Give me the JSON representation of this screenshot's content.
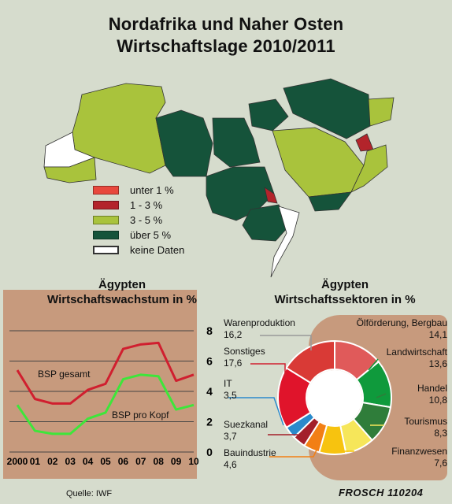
{
  "title": {
    "line1": "Nordafrika und Naher Osten",
    "line2": "Wirtschaftslage 2010/2011"
  },
  "legend": [
    {
      "label": "unter 1 %",
      "color": "#e8483d"
    },
    {
      "label": "1 - 3 %",
      "color": "#b3242b"
    },
    {
      "label": "3 - 5 %",
      "color": "#a9c33c"
    },
    {
      "label": "über 5 %",
      "color": "#15533a"
    },
    {
      "label": "keine Daten",
      "color": "#ffffff"
    }
  ],
  "colors": {
    "background": "#d6dccd",
    "bsp_gesamt": "#d01f2f",
    "bsp_pro_kopf": "#3ee63a"
  },
  "left_title": {
    "line1": "Ägypten",
    "line2": "Wirtschaftswachstum in %"
  },
  "right_title": {
    "line1": "Ägypten",
    "line2": "Wirtschaftssektoren in %"
  },
  "line_labels": {
    "gesamt": "BSP gesamt",
    "kopf": "BSP pro Kopf"
  },
  "sector_labels": [
    {
      "name": "Warenproduktion",
      "value": "16,2"
    },
    {
      "name": "Sonstiges",
      "value": "17,6"
    },
    {
      "name": "IT",
      "value": "3,5"
    },
    {
      "name": "Suezkanal",
      "value": "3,7"
    },
    {
      "name": "Bauindustrie",
      "value": "4,6"
    },
    {
      "name": "Ölförderung, Bergbau",
      "value": "14,1"
    },
    {
      "name": "Landwirtschaft",
      "value": "13,6"
    },
    {
      "name": "Handel",
      "value": "10,8"
    },
    {
      "name": "Tourismus",
      "value": "8,3"
    },
    {
      "name": "Finanzwesen",
      "value": "7,6"
    }
  ],
  "source": "Quelle: IWF",
  "signature": "FROSCH 110204",
  "chart_data": [
    {
      "type": "line",
      "title": "Wirtschaftswachstum in %",
      "x": [
        "2000",
        "01",
        "02",
        "03",
        "04",
        "05",
        "06",
        "07",
        "08",
        "09",
        "10"
      ],
      "yticks": [
        "0",
        "2",
        "4",
        "6",
        "8"
      ],
      "ylim": [
        0,
        8
      ],
      "series": [
        {
          "name": "BSP gesamt",
          "values": [
            5.4,
            3.5,
            3.2,
            3.2,
            4.1,
            4.5,
            6.8,
            7.1,
            7.2,
            4.7,
            5.1
          ],
          "color": "#d01f2f"
        },
        {
          "name": "BSP pro Kopf",
          "values": [
            3.1,
            1.4,
            1.2,
            1.2,
            2.2,
            2.6,
            4.8,
            5.1,
            5.0,
            2.8,
            3.1
          ],
          "color": "#3ee63a"
        }
      ]
    },
    {
      "type": "pie",
      "title": "Wirtschaftssektoren in %",
      "slices": [
        {
          "name": "Ölförderung, Bergbau",
          "value": 14.1,
          "color": "#e05a5a"
        },
        {
          "name": "Landwirtschaft",
          "value": 13.6,
          "color": "#0f9a3c"
        },
        {
          "name": "Handel",
          "value": 10.8,
          "color": "#2f7d3a"
        },
        {
          "name": "Tourismus",
          "value": 8.3,
          "color": "#f6e65a"
        },
        {
          "name": "Finanzwesen",
          "value": 7.6,
          "color": "#f7c30f"
        },
        {
          "name": "Bauindustrie",
          "value": 4.6,
          "color": "#f27f15"
        },
        {
          "name": "Suezkanal",
          "value": 3.7,
          "color": "#a31f2a"
        },
        {
          "name": "IT",
          "value": 3.5,
          "color": "#2b8acb"
        },
        {
          "name": "Sonstiges",
          "value": 17.6,
          "color": "#e0142b"
        },
        {
          "name": "Warenproduktion",
          "value": 16.2,
          "color": "#d93a36"
        }
      ]
    }
  ]
}
